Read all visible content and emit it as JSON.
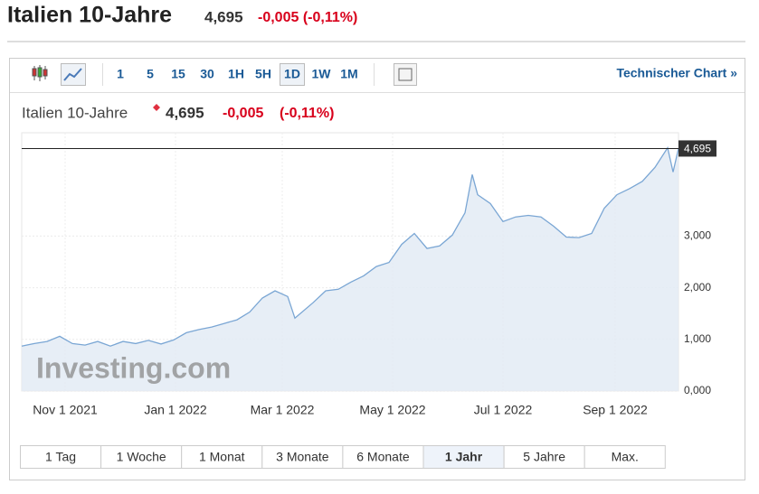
{
  "header": {
    "title": "Italien 10-Jahre",
    "price": "4,695",
    "change": "-0,005 (-0,11%)"
  },
  "toolbar": {
    "intervals": [
      "1",
      "5",
      "15",
      "30",
      "1H",
      "5H",
      "1D",
      "1W",
      "1M"
    ],
    "active": 6,
    "link": "Technischer Chart »"
  },
  "chart_header": {
    "title": "Italien 10-Jahre",
    "price": "4,695",
    "change": "-0,005",
    "change_pct": "(-0,11%)"
  },
  "chart_data": {
    "type": "area",
    "color": "#7aa6d4",
    "fill": "#e3ebf4",
    "grid": true,
    "watermark": "Investing.com",
    "x": [
      "2021-10-08",
      "2021-10-15",
      "2021-10-22",
      "2021-10-29",
      "2021-11-05",
      "2021-11-12",
      "2021-11-19",
      "2021-11-26",
      "2021-12-03",
      "2021-12-10",
      "2021-12-17",
      "2021-12-24",
      "2021-12-31",
      "2022-01-07",
      "2022-01-14",
      "2022-01-21",
      "2022-01-28",
      "2022-02-04",
      "2022-02-11",
      "2022-02-18",
      "2022-02-25",
      "2022-03-04",
      "2022-03-08",
      "2022-03-18",
      "2022-03-25",
      "2022-04-01",
      "2022-04-08",
      "2022-04-15",
      "2022-04-22",
      "2022-04-29",
      "2022-05-06",
      "2022-05-13",
      "2022-05-20",
      "2022-05-27",
      "2022-06-03",
      "2022-06-10",
      "2022-06-14",
      "2022-06-17",
      "2022-06-24",
      "2022-07-01",
      "2022-07-08",
      "2022-07-15",
      "2022-07-22",
      "2022-07-29",
      "2022-08-05",
      "2022-08-12",
      "2022-08-19",
      "2022-08-26",
      "2022-09-02",
      "2022-09-09",
      "2022-09-16",
      "2022-09-23",
      "2022-09-30",
      "2022-10-03",
      "2022-10-06"
    ],
    "values": [
      0.87,
      0.92,
      0.96,
      1.06,
      0.92,
      0.89,
      0.96,
      0.87,
      0.96,
      0.92,
      0.98,
      0.91,
      0.99,
      1.13,
      1.19,
      1.24,
      1.31,
      1.38,
      1.53,
      1.8,
      1.94,
      1.83,
      1.41,
      1.71,
      1.94,
      1.97,
      2.11,
      2.23,
      2.41,
      2.49,
      2.84,
      3.05,
      2.76,
      2.81,
      3.02,
      3.45,
      4.19,
      3.8,
      3.63,
      3.28,
      3.37,
      3.4,
      3.37,
      3.19,
      2.98,
      2.97,
      3.05,
      3.54,
      3.8,
      3.92,
      4.06,
      4.33,
      4.71,
      4.24,
      4.695
    ],
    "current": {
      "value": 4.695,
      "label": "4,695"
    },
    "xlim": [
      "2021-10-08",
      "2022-10-06"
    ],
    "xticks": [
      {
        "value": "2021-11-01",
        "label": "Nov 1 2021"
      },
      {
        "value": "2022-01-01",
        "label": "Jan 1 2022"
      },
      {
        "value": "2022-03-01",
        "label": "Mar 1 2022"
      },
      {
        "value": "2022-05-01",
        "label": "May 1 2022"
      },
      {
        "value": "2022-07-01",
        "label": "Jul 1 2022"
      },
      {
        "value": "2022-09-01",
        "label": "Sep 1 2022"
      }
    ],
    "ylim": [
      0,
      5
    ],
    "yticks": [
      {
        "value": 0,
        "label": "0,000"
      },
      {
        "value": 1,
        "label": "1,000"
      },
      {
        "value": 2,
        "label": "2,000"
      },
      {
        "value": 3,
        "label": "3,000"
      }
    ]
  },
  "ranges": {
    "items": [
      "1 Tag",
      "1 Woche",
      "1 Monat",
      "3 Monate",
      "6 Monate",
      "1 Jahr",
      "5 Jahre",
      "Max."
    ],
    "active": 5
  }
}
